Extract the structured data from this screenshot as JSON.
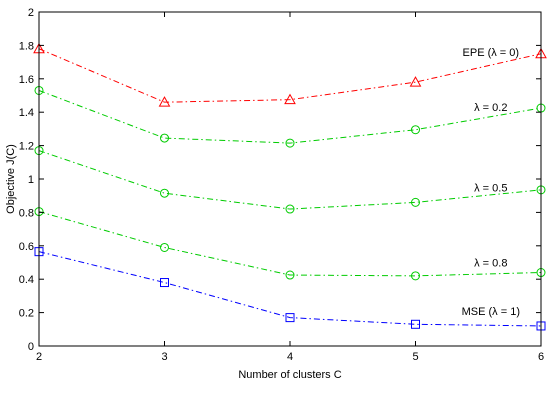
{
  "chart_data": {
    "type": "line",
    "title": "",
    "xlabel": "Number of clusters C",
    "ylabel": "Objective J(C)",
    "xlim": [
      2,
      6
    ],
    "ylim": [
      0,
      2
    ],
    "xticks": [
      2,
      3,
      4,
      5,
      6
    ],
    "xtick_labels": [
      "2",
      "3",
      "4",
      "5",
      "6"
    ],
    "yticks": [
      0,
      0.2,
      0.4,
      0.6,
      0.8,
      1,
      1.2,
      1.4,
      1.6,
      1.8,
      2
    ],
    "ytick_labels": [
      "0",
      "0.2",
      "0.4",
      "0.6",
      "0.8",
      "1",
      "1.2",
      "1.4",
      "1.6",
      "1.8",
      "2"
    ],
    "grid": false,
    "legend": "none",
    "x": [
      2,
      3,
      4,
      5,
      6
    ],
    "series": [
      {
        "name": "EPE (λ = 0)",
        "values": [
          1.78,
          1.46,
          1.475,
          1.58,
          1.75
        ],
        "color": "#ff0000",
        "marker": "triangle",
        "label_at": [
          5.6,
          1.76
        ]
      },
      {
        "name": "λ = 0.2",
        "values": [
          1.53,
          1.245,
          1.215,
          1.295,
          1.425
        ],
        "color": "#00cc00",
        "marker": "circle",
        "label_at": [
          5.6,
          1.43
        ]
      },
      {
        "name": "λ = 0.5",
        "values": [
          1.17,
          0.915,
          0.82,
          0.86,
          0.935
        ],
        "color": "#00cc00",
        "marker": "circle",
        "label_at": [
          5.6,
          0.95
        ]
      },
      {
        "name": "λ = 0.8",
        "values": [
          0.805,
          0.59,
          0.425,
          0.42,
          0.44
        ],
        "color": "#00cc00",
        "marker": "circle",
        "label_at": [
          5.6,
          0.5
        ]
      },
      {
        "name": "MSE (λ = 1)",
        "values": [
          0.565,
          0.38,
          0.17,
          0.13,
          0.12
        ],
        "color": "#0000ff",
        "marker": "square",
        "label_at": [
          5.6,
          0.21
        ]
      }
    ]
  }
}
